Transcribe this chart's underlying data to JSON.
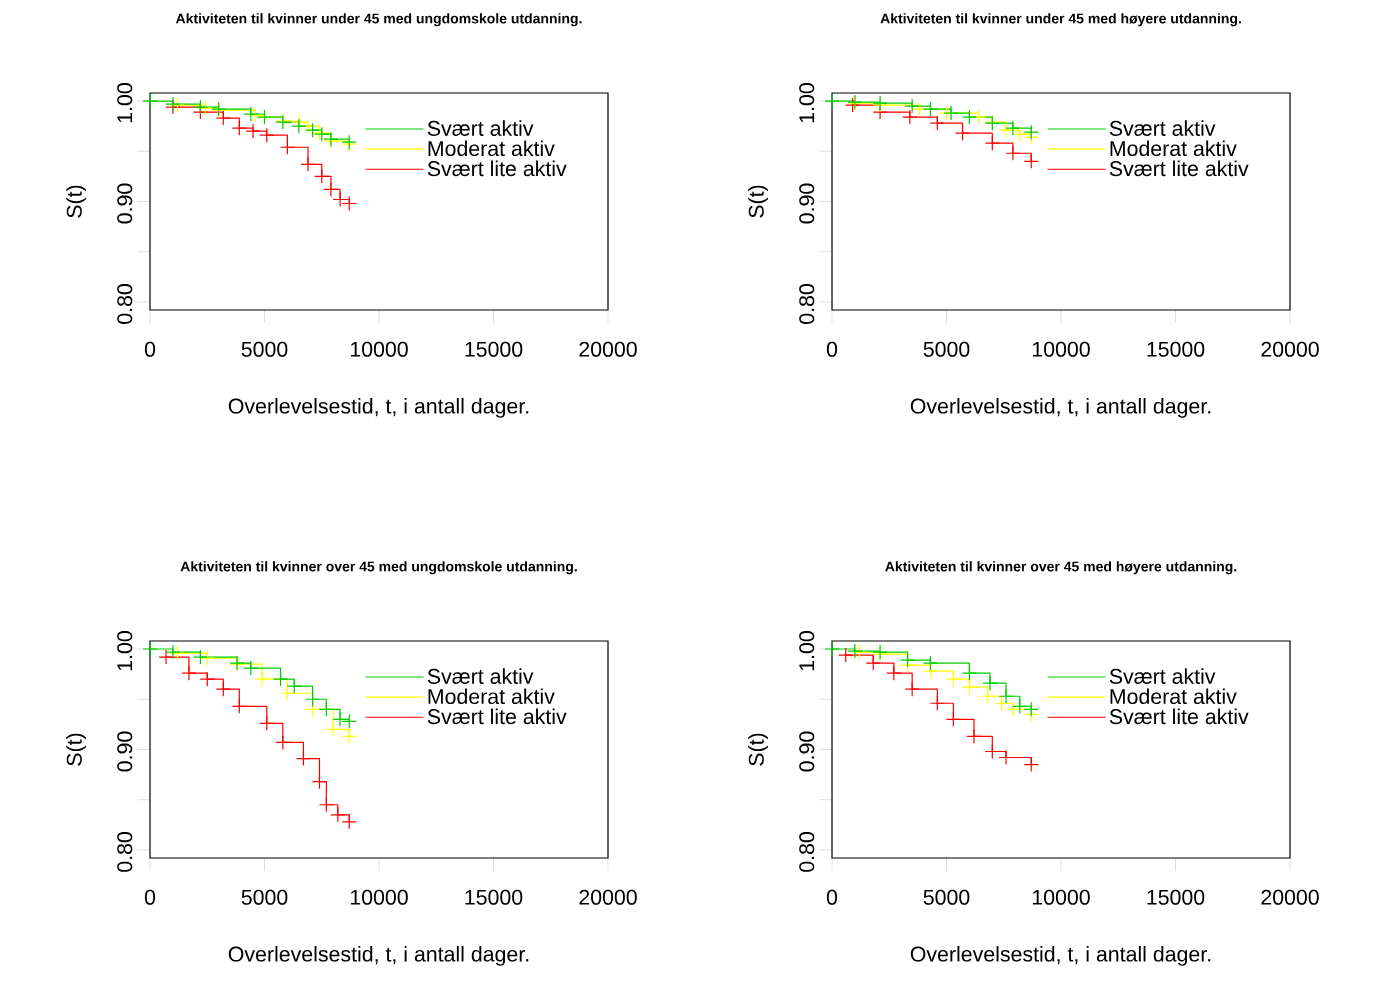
{
  "chart_data": [
    {
      "type": "step",
      "title": "Aktiviteten til kvinner under 45 med ungdomskole utdanning.",
      "xlabel": "Overlevelsestid, t, i antall dager.",
      "ylabel": "S(t)",
      "xlim": [
        0,
        20000
      ],
      "ylim": [
        0.792,
        1.008
      ],
      "xticks": [
        0,
        5000,
        10000,
        15000,
        20000
      ],
      "yticks": [
        {
          "value": 0.8,
          "label": "0.80"
        },
        {
          "value": 0.85,
          "label": null
        },
        {
          "value": 0.9,
          "label": "0.90"
        },
        {
          "value": 0.95,
          "label": null
        },
        {
          "value": 1.0,
          "label": "1.00"
        }
      ],
      "legend": "top right",
      "marker": "cross",
      "series": [
        {
          "name": "Svært aktiv",
          "color": "#00cd00",
          "x": [
            0,
            1000,
            2200,
            3000,
            4400,
            5000,
            5800,
            6500,
            7100,
            7500,
            7900,
            8700
          ],
          "values": [
            1,
            0.997,
            0.994,
            0.992,
            0.987,
            0.984,
            0.979,
            0.975,
            0.971,
            0.967,
            0.962,
            0.959
          ]
        },
        {
          "name": "Moderat aktiv",
          "color": "#ffff00",
          "x": [
            1200,
            2400,
            3000,
            4600,
            5000,
            5800,
            6500,
            6900,
            7400,
            7900,
            8700
          ],
          "values": [
            0.996,
            0.993,
            0.991,
            0.986,
            0.984,
            0.98,
            0.979,
            0.975,
            0.968,
            0.96,
            0.957
          ]
        },
        {
          "name": "Svært lite aktiv",
          "color": "#ff0000",
          "x": [
            1000,
            2200,
            3200,
            3900,
            4500,
            5100,
            6000,
            6900,
            7500,
            7900,
            8300,
            8700
          ],
          "values": [
            0.994,
            0.989,
            0.983,
            0.973,
            0.97,
            0.966,
            0.954,
            0.937,
            0.925,
            0.912,
            0.902,
            0.898
          ]
        }
      ]
    },
    {
      "type": "step",
      "title": "Aktiviteten til kvinner under 45 med høyere utdanning.",
      "xlabel": "Overlevelsestid, t, i antall dager.",
      "ylabel": "S(t)",
      "xlim": [
        0,
        20000
      ],
      "ylim": [
        0.792,
        1.008
      ],
      "xticks": [
        0,
        5000,
        10000,
        15000,
        20000
      ],
      "yticks": [
        {
          "value": 0.8,
          "label": "0.80"
        },
        {
          "value": 0.85,
          "label": null
        },
        {
          "value": 0.9,
          "label": "0.90"
        },
        {
          "value": 0.95,
          "label": null
        },
        {
          "value": 1.0,
          "label": "1.00"
        }
      ],
      "legend": "top right",
      "marker": "cross",
      "series": [
        {
          "name": "Svært aktiv",
          "color": "#00cd00",
          "x": [
            0,
            1000,
            2100,
            3500,
            4300,
            5200,
            6000,
            7000,
            7900,
            8700
          ],
          "values": [
            1,
            0.999,
            0.998,
            0.995,
            0.992,
            0.988,
            0.984,
            0.978,
            0.973,
            0.969
          ]
        },
        {
          "name": "Moderat aktiv",
          "color": "#ffff00",
          "x": [
            1000,
            2100,
            3800,
            5000,
            6400,
            7000,
            7600,
            8200,
            8700
          ],
          "values": [
            0.998,
            0.996,
            0.992,
            0.988,
            0.984,
            0.979,
            0.971,
            0.967,
            0.964
          ]
        },
        {
          "name": "Svært lite aktiv",
          "color": "#ff0000",
          "x": [
            900,
            2100,
            3400,
            4600,
            5700,
            7000,
            7900,
            8700
          ],
          "values": [
            0.996,
            0.989,
            0.984,
            0.978,
            0.968,
            0.958,
            0.948,
            0.94
          ]
        }
      ]
    },
    {
      "type": "step",
      "title": "Aktiviteten til kvinner over 45 med ungdomskole utdanning.",
      "xlabel": "Overlevelsestid, t, i antall dager.",
      "ylabel": "S(t)",
      "xlim": [
        0,
        20000
      ],
      "ylim": [
        0.792,
        1.008
      ],
      "xticks": [
        0,
        5000,
        10000,
        15000,
        20000
      ],
      "yticks": [
        {
          "value": 0.8,
          "label": "0.80"
        },
        {
          "value": 0.85,
          "label": null
        },
        {
          "value": 0.9,
          "label": "0.90"
        },
        {
          "value": 0.95,
          "label": null
        },
        {
          "value": 1.0,
          "label": "1.00"
        }
      ],
      "legend": "top right",
      "marker": "cross",
      "series": [
        {
          "name": "Svært aktiv",
          "color": "#00cd00",
          "x": [
            0,
            1000,
            2200,
            3800,
            4400,
            5700,
            6300,
            7100,
            7700,
            8300,
            8700
          ],
          "values": [
            1,
            0.997,
            0.992,
            0.986,
            0.981,
            0.97,
            0.963,
            0.95,
            0.94,
            0.93,
            0.928
          ]
        },
        {
          "name": "Moderat aktiv",
          "color": "#ffff00",
          "x": [
            1200,
            2500,
            3800,
            4900,
            6000,
            7100,
            8000,
            8700
          ],
          "values": [
            0.996,
            0.991,
            0.985,
            0.97,
            0.956,
            0.94,
            0.92,
            0.913
          ]
        },
        {
          "name": "Svært lite aktiv",
          "color": "#ff0000",
          "x": [
            700,
            1700,
            2500,
            3200,
            3900,
            5100,
            5800,
            6700,
            7400,
            7700,
            8200,
            8700
          ],
          "values": [
            0.992,
            0.976,
            0.97,
            0.96,
            0.943,
            0.926,
            0.907,
            0.891,
            0.868,
            0.845,
            0.835,
            0.828
          ]
        }
      ]
    },
    {
      "type": "step",
      "title": "Aktiviteten til kvinner over 45 med høyere utdanning.",
      "xlabel": "Overlevelsestid, t, i antall dager.",
      "ylabel": "S(t)",
      "xlim": [
        0,
        20000
      ],
      "ylim": [
        0.792,
        1.008
      ],
      "xticks": [
        0,
        5000,
        10000,
        15000,
        20000
      ],
      "yticks": [
        {
          "value": 0.8,
          "label": "0.80"
        },
        {
          "value": 0.85,
          "label": null
        },
        {
          "value": 0.9,
          "label": "0.90"
        },
        {
          "value": 0.95,
          "label": null
        },
        {
          "value": 1.0,
          "label": "1.00"
        }
      ],
      "legend": "top right",
      "marker": "cross",
      "series": [
        {
          "name": "Svært aktiv",
          "color": "#00cd00",
          "x": [
            0,
            1000,
            2100,
            3300,
            4300,
            6000,
            6900,
            7600,
            8200,
            8700
          ],
          "values": [
            1,
            0.998,
            0.997,
            0.989,
            0.986,
            0.976,
            0.966,
            0.953,
            0.943,
            0.94
          ]
        },
        {
          "name": "Moderat aktiv",
          "color": "#ffff00",
          "x": [
            1200,
            2100,
            3300,
            4300,
            5300,
            6000,
            6800,
            7400,
            7900,
            8700
          ],
          "values": [
            0.997,
            0.995,
            0.984,
            0.978,
            0.97,
            0.962,
            0.953,
            0.946,
            0.94,
            0.935
          ]
        },
        {
          "name": "Svært lite aktiv",
          "color": "#ff0000",
          "x": [
            600,
            1800,
            2700,
            3500,
            4600,
            5300,
            6200,
            7000,
            7600,
            8700
          ],
          "values": [
            0.994,
            0.986,
            0.976,
            0.96,
            0.946,
            0.93,
            0.913,
            0.898,
            0.892,
            0.885
          ]
        }
      ]
    }
  ]
}
